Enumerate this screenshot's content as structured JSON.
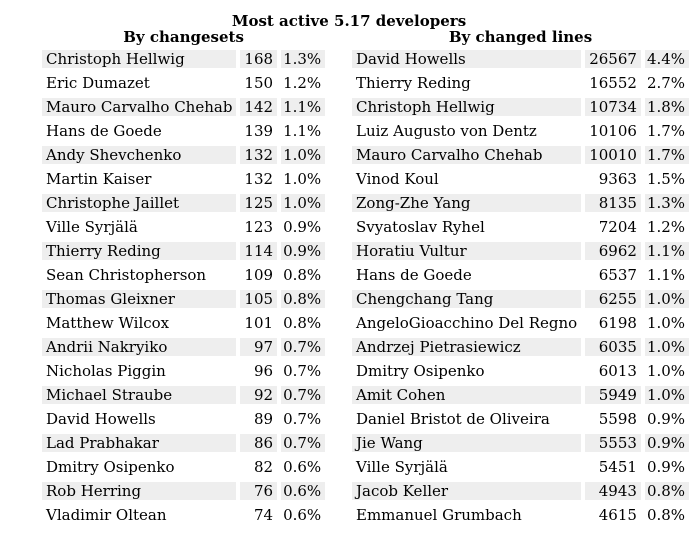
{
  "title": "Most active 5.17 developers",
  "changesets": {
    "header": "By changesets",
    "rows": [
      {
        "name": "Christoph Hellwig",
        "count": "168",
        "pct": "1.3%"
      },
      {
        "name": "Eric Dumazet",
        "count": "150",
        "pct": "1.2%"
      },
      {
        "name": "Mauro Carvalho Chehab",
        "count": "142",
        "pct": "1.1%"
      },
      {
        "name": "Hans de Goede",
        "count": "139",
        "pct": "1.1%"
      },
      {
        "name": "Andy Shevchenko",
        "count": "132",
        "pct": "1.0%"
      },
      {
        "name": "Martin Kaiser",
        "count": "132",
        "pct": "1.0%"
      },
      {
        "name": "Christophe Jaillet",
        "count": "125",
        "pct": "1.0%"
      },
      {
        "name": "Ville Syrjälä",
        "count": "123",
        "pct": "0.9%"
      },
      {
        "name": "Thierry Reding",
        "count": "114",
        "pct": "0.9%"
      },
      {
        "name": "Sean Christopherson",
        "count": "109",
        "pct": "0.8%"
      },
      {
        "name": "Thomas Gleixner",
        "count": "105",
        "pct": "0.8%"
      },
      {
        "name": "Matthew Wilcox",
        "count": "101",
        "pct": "0.8%"
      },
      {
        "name": "Andrii Nakryiko",
        "count": "97",
        "pct": "0.7%"
      },
      {
        "name": "Nicholas Piggin",
        "count": "96",
        "pct": "0.7%"
      },
      {
        "name": "Michael Straube",
        "count": "92",
        "pct": "0.7%"
      },
      {
        "name": "David Howells",
        "count": "89",
        "pct": "0.7%"
      },
      {
        "name": "Lad Prabhakar",
        "count": "86",
        "pct": "0.7%"
      },
      {
        "name": "Dmitry Osipenko",
        "count": "82",
        "pct": "0.6%"
      },
      {
        "name": "Rob Herring",
        "count": "76",
        "pct": "0.6%"
      },
      {
        "name": "Vladimir Oltean",
        "count": "74",
        "pct": "0.6%"
      }
    ]
  },
  "lines": {
    "header": "By changed lines",
    "rows": [
      {
        "name": "David Howells",
        "count": "26567",
        "pct": "4.4%"
      },
      {
        "name": "Thierry Reding",
        "count": "16552",
        "pct": "2.7%"
      },
      {
        "name": "Christoph Hellwig",
        "count": "10734",
        "pct": "1.8%"
      },
      {
        "name": "Luiz Augusto von Dentz",
        "count": "10106",
        "pct": "1.7%"
      },
      {
        "name": "Mauro Carvalho Chehab",
        "count": "10010",
        "pct": "1.7%"
      },
      {
        "name": "Vinod Koul",
        "count": "9363",
        "pct": "1.5%"
      },
      {
        "name": "Zong-Zhe Yang",
        "count": "8135",
        "pct": "1.3%"
      },
      {
        "name": "Svyatoslav Ryhel",
        "count": "7204",
        "pct": "1.2%"
      },
      {
        "name": "Horatiu Vultur",
        "count": "6962",
        "pct": "1.1%"
      },
      {
        "name": "Hans de Goede",
        "count": "6537",
        "pct": "1.1%"
      },
      {
        "name": "Chengchang Tang",
        "count": "6255",
        "pct": "1.0%"
      },
      {
        "name": "AngeloGioacchino Del Regno",
        "count": "6198",
        "pct": "1.0%"
      },
      {
        "name": "Andrzej Pietrasiewicz",
        "count": "6035",
        "pct": "1.0%"
      },
      {
        "name": "Dmitry Osipenko",
        "count": "6013",
        "pct": "1.0%"
      },
      {
        "name": "Amit Cohen",
        "count": "5949",
        "pct": "1.0%"
      },
      {
        "name": "Daniel Bristot de Oliveira",
        "count": "5598",
        "pct": "0.9%"
      },
      {
        "name": "Jie Wang",
        "count": "5553",
        "pct": "0.9%"
      },
      {
        "name": "Ville Syrjälä",
        "count": "5451",
        "pct": "0.9%"
      },
      {
        "name": "Jacob Keller",
        "count": "4943",
        "pct": "0.8%"
      },
      {
        "name": "Emmanuel Grumbach",
        "count": "4615",
        "pct": "0.8%"
      }
    ]
  }
}
